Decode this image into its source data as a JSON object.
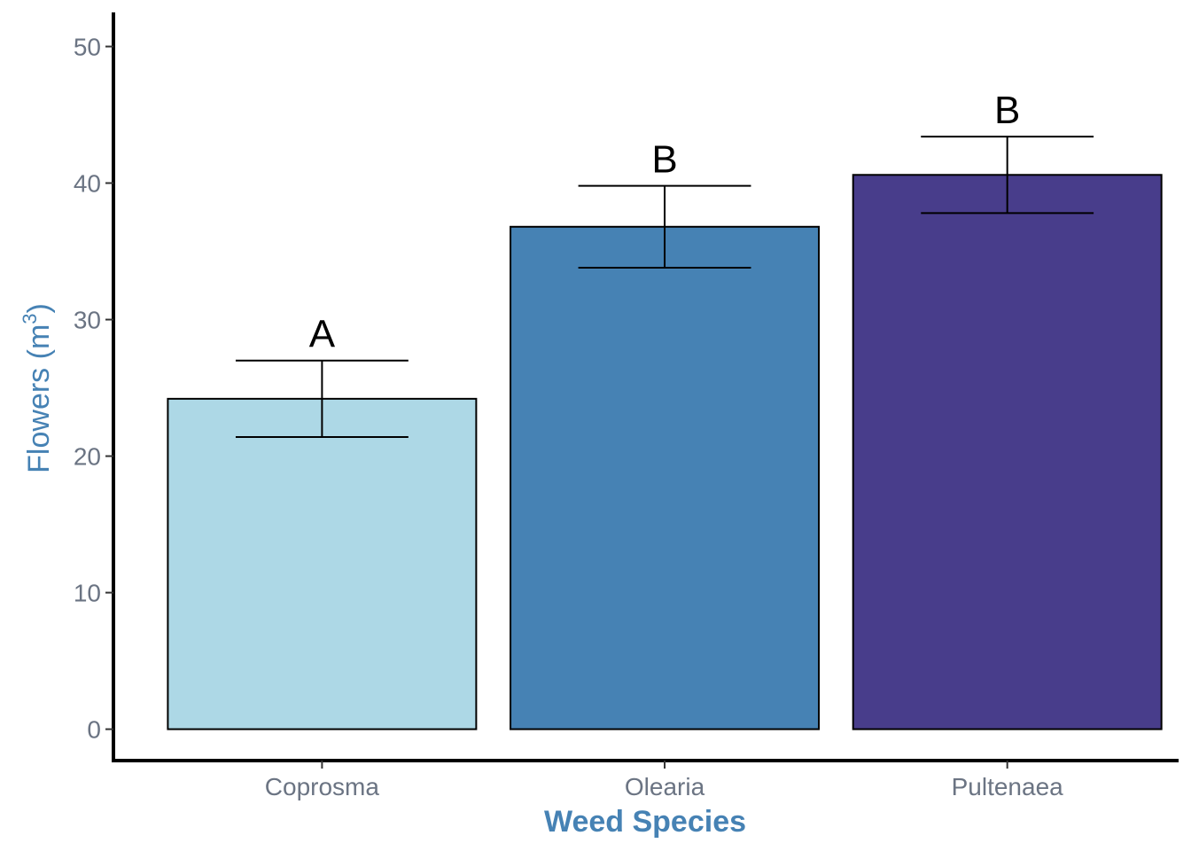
{
  "chart_data": {
    "type": "bar",
    "title": "",
    "xlabel": "Weed Species",
    "ylabel": {
      "main": "Flowers (m",
      "superscript": "3",
      "close": ")"
    },
    "categories": [
      "Coprosma",
      "Olearia",
      "Pultenaea"
    ],
    "values": [
      24.2,
      36.8,
      40.6
    ],
    "error_upper": [
      27.0,
      39.8,
      43.4
    ],
    "error_lower": [
      21.4,
      33.8,
      37.8
    ],
    "significance_letters": [
      "A",
      "B",
      "B"
    ],
    "colors": [
      "#add8e6",
      "#4682b4",
      "#483d8b"
    ],
    "ylim": [
      -2.3,
      52.5
    ],
    "yticks": [
      "0",
      "10",
      "20",
      "30",
      "40",
      "50"
    ],
    "grid": false,
    "legend": "none"
  }
}
